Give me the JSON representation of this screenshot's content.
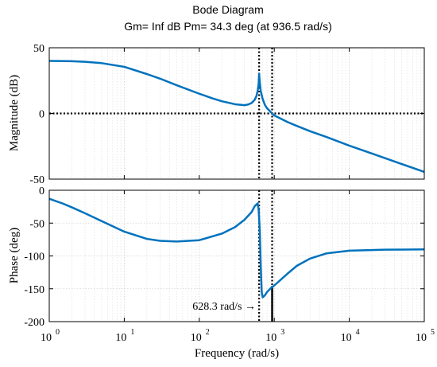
{
  "chart_data": {
    "type": "line",
    "title": "Bode Diagram",
    "subtitle": "Gm= Inf dB  Pm= 34.3 deg (at 936.5 rad/s)",
    "xlabel": "Frequency  (rad/s)",
    "xscale": "log",
    "xlim": [
      1,
      100000
    ],
    "x_tick_labels": [
      {
        "base": "10",
        "exp": "0"
      },
      {
        "base": "10",
        "exp": "1"
      },
      {
        "base": "10",
        "exp": "2"
      },
      {
        "base": "10",
        "exp": "3"
      },
      {
        "base": "10",
        "exp": "4"
      },
      {
        "base": "10",
        "exp": "5"
      }
    ],
    "grid": true,
    "series_color": "#0072BD",
    "magnitude": {
      "ylabel": "Magnitude  (dB)",
      "ylim": [
        -50,
        50
      ],
      "y_ticks": [
        "-50",
        "0",
        "50"
      ],
      "x": [
        1,
        2,
        3,
        5,
        10,
        20,
        30,
        50,
        100,
        150,
        200,
        300,
        400,
        450,
        500,
        550,
        580,
        600,
        620,
        628.3,
        640,
        660,
        700,
        750,
        800,
        900,
        1000,
        1500,
        2000,
        3000,
        5000,
        10000,
        20000,
        50000,
        100000
      ],
      "y": [
        40,
        39.8,
        39.3,
        38.3,
        35.5,
        30,
        26.5,
        21.5,
        15,
        11.5,
        9.3,
        7,
        6.3,
        6.8,
        8,
        10.5,
        13.5,
        17,
        23,
        30,
        24,
        17,
        11,
        6.5,
        4,
        1,
        -1.5,
        -6.5,
        -9.5,
        -13.5,
        -18,
        -24.5,
        -30.5,
        -38.5,
        -44.5
      ]
    },
    "phase": {
      "ylabel": "Phase  (deg)",
      "ylim": [
        -200,
        0
      ],
      "y_ticks": [
        "-200",
        "-150",
        "-100",
        "-50",
        "0"
      ],
      "x": [
        1,
        1.5,
        2,
        3,
        5,
        10,
        20,
        30,
        50,
        100,
        200,
        300,
        400,
        500,
        550,
        600,
        620,
        640,
        660,
        680,
        700,
        750,
        800,
        900,
        1000,
        1500,
        2000,
        3000,
        5000,
        10000,
        30000,
        100000
      ],
      "y": [
        -13,
        -20,
        -26,
        -35,
        -47,
        -63,
        -74,
        -77,
        -78,
        -76,
        -66,
        -56,
        -45,
        -33,
        -24,
        -20,
        -30,
        -60,
        -115,
        -155,
        -163,
        -160,
        -155,
        -149,
        -145,
        -127,
        -115,
        -104,
        -96,
        -92,
        -90.5,
        -90
      ]
    },
    "markers": {
      "peak_frequency": 628.3,
      "crossover_frequency": 936.5,
      "phase_margin_deg": 34.3
    },
    "annotation": "628.3 rad/s →"
  }
}
